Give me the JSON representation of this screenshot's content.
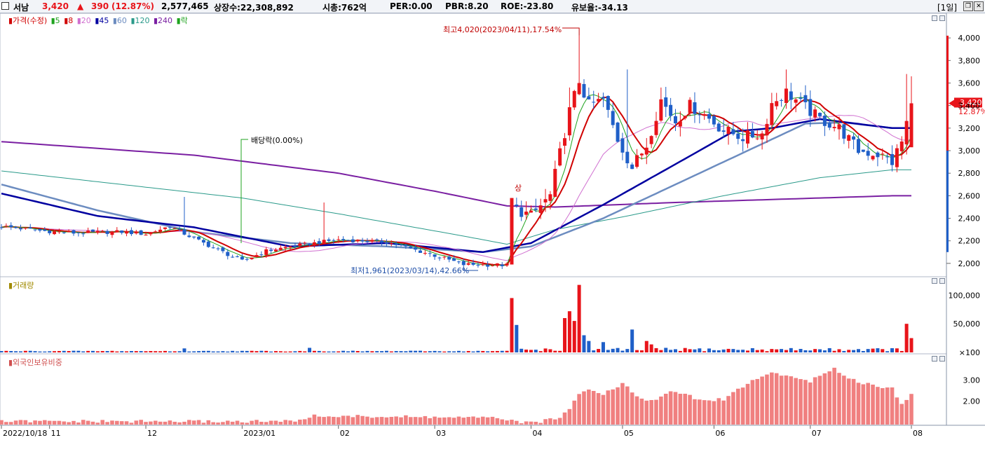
{
  "header": {
    "name": "서남",
    "price": "3,420",
    "arrow": "▲",
    "change": "390",
    "change_pct": "(12.87%)",
    "volume": "2,577,465",
    "listed": "상장수:22,308,892",
    "mktcap": "시총:762억",
    "per": "PER:0.00",
    "pbr": "PBR:8.20",
    "roe": "ROE:-23.80",
    "reserve": "유보율:-34.13",
    "period": "[1일]"
  },
  "legend": {
    "price": "▮가격(수정)",
    "ma": [
      {
        "label": "▮5",
        "color": "#1fa31f"
      },
      {
        "label": "▮8",
        "color": "#d00000"
      },
      {
        "label": "▮20",
        "color": "#d070d0"
      },
      {
        "label": "▮45",
        "color": "#0000a0"
      },
      {
        "label": "▮60",
        "color": "#6c8cc0"
      },
      {
        "label": "▮120",
        "color": "#2a9a8a"
      },
      {
        "label": "▮240",
        "color": "#7a1fa2"
      },
      {
        "label": "▮락",
        "color": "#1fa31f"
      }
    ],
    "volume": "▮거래량",
    "foreign": "▮외국인보유비중"
  },
  "annotations": {
    "high": "최고4,020(2023/04/11),17.54%",
    "low": "최저1,961(2023/03/14),42.66%",
    "dividend": "배당락(0.00%)",
    "limit_up": "상"
  },
  "current": {
    "price": "3,420",
    "pct": "12.87%"
  },
  "colors": {
    "up": "#e8141a",
    "down": "#1f5fc8",
    "foreign_bar": "#f08080"
  },
  "chart_data": [
    {
      "type": "candlestick",
      "title": "서남",
      "ylim": [
        1900,
        4150
      ],
      "y_ticks": [
        "4,000",
        "3,800",
        "3,600",
        "3,400",
        "3,200",
        "3,000",
        "2,800",
        "2,600",
        "2,400",
        "2,200",
        "2,000"
      ],
      "y_tick_values": [
        4000,
        3800,
        3600,
        3400,
        3200,
        3000,
        2800,
        2600,
        2400,
        2200,
        2000
      ],
      "x_labels": [
        "2022/10/18",
        "11",
        "12",
        "2023/01",
        "02",
        "03",
        "04",
        "05",
        "06",
        "07",
        "08"
      ],
      "x_label_index": [
        0,
        10,
        30,
        50,
        70,
        90,
        110,
        129,
        148,
        168,
        189
      ],
      "ma_anchors": {
        "ma240": [
          [
            0,
            3080
          ],
          [
            40,
            2960
          ],
          [
            70,
            2800
          ],
          [
            90,
            2640
          ],
          [
            105,
            2510
          ],
          [
            115,
            2500
          ],
          [
            140,
            2540
          ],
          [
            170,
            2580
          ],
          [
            185,
            2600
          ]
        ],
        "ma120": [
          [
            0,
            2820
          ],
          [
            25,
            2700
          ],
          [
            50,
            2580
          ],
          [
            70,
            2440
          ],
          [
            95,
            2250
          ],
          [
            105,
            2170
          ],
          [
            115,
            2300
          ],
          [
            130,
            2420
          ],
          [
            150,
            2600
          ],
          [
            170,
            2760
          ],
          [
            185,
            2830
          ]
        ],
        "ma60": [
          [
            0,
            2700
          ],
          [
            20,
            2470
          ],
          [
            40,
            2280
          ],
          [
            60,
            2180
          ],
          [
            80,
            2150
          ],
          [
            100,
            2100
          ],
          [
            110,
            2150
          ],
          [
            125,
            2400
          ],
          [
            140,
            2700
          ],
          [
            155,
            3000
          ],
          [
            167,
            3240
          ],
          [
            175,
            3250
          ],
          [
            185,
            3200
          ]
        ],
        "ma45": [
          [
            0,
            2620
          ],
          [
            20,
            2420
          ],
          [
            40,
            2320
          ],
          [
            60,
            2150
          ],
          [
            80,
            2180
          ],
          [
            100,
            2100
          ],
          [
            110,
            2180
          ],
          [
            125,
            2520
          ],
          [
            140,
            2880
          ],
          [
            152,
            3170
          ],
          [
            160,
            3200
          ],
          [
            170,
            3280
          ],
          [
            185,
            3200
          ]
        ]
      }
    },
    {
      "type": "bar",
      "title": "거래량",
      "y_ticks": [
        "100,000",
        "50,000",
        "×100"
      ],
      "y_tick_values": [
        100000,
        50000,
        0
      ],
      "ylim": [
        0,
        120000
      ]
    },
    {
      "type": "bar",
      "title": "외국인보유비중",
      "y_ticks": [
        "3.00",
        "2.00"
      ],
      "y_tick_values": [
        3.0,
        2.0
      ],
      "ylim": [
        0.9,
        3.9
      ]
    }
  ]
}
